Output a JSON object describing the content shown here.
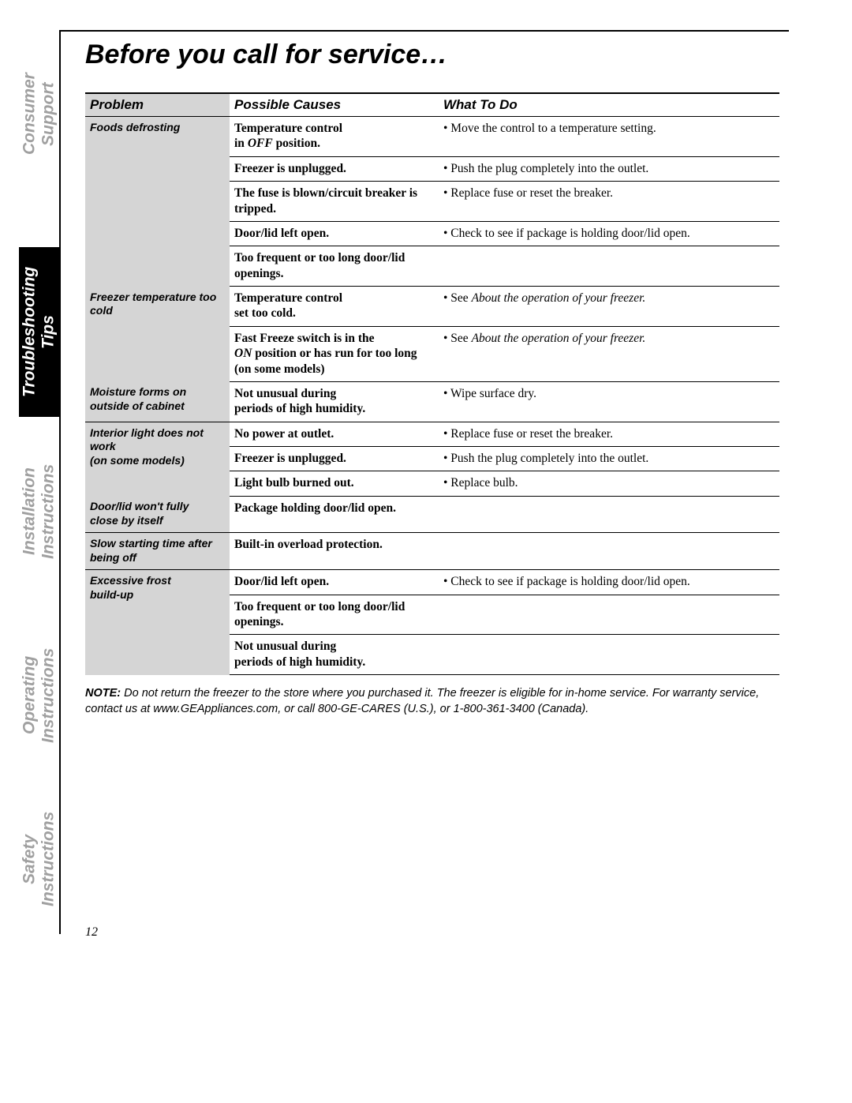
{
  "title": "Before you call for service…",
  "tabs": {
    "safety": "Safety Instructions",
    "operating": "Operating Instructions",
    "install": "Installation Instructions",
    "trouble": "Troubleshooting Tips",
    "consumer": "Consumer Support"
  },
  "headers": {
    "problem": "Problem",
    "cause": "Possible Causes",
    "do": "What To Do"
  },
  "rows": [
    {
      "problem": "Foods defrosting",
      "cause": "Temperature control<br>in <i>OFF</i> position.",
      "do": "• Move the control to a temperature setting."
    },
    {
      "cause": "Freezer is unplugged.",
      "do": "• Push the plug completely into the outlet."
    },
    {
      "cause": "The fuse is blown/circuit breaker is tripped.",
      "do": "• Replace fuse or reset the breaker."
    },
    {
      "cause": "Door/lid left open.",
      "do": "• Check to see if package is holding door/lid open."
    },
    {
      "cause": "Too frequent or too long door/lid openings.",
      "do": "",
      "last": true
    },
    {
      "problem": "Freezer temperature too cold",
      "cause": "Temperature control<br>set too cold.",
      "do": "• See <i>About the operation of your freezer.</i>"
    },
    {
      "cause": "Fast Freeze switch is in the<br><i>ON</i> position or has run for too long (on some models)",
      "do": "• See <i>About the operation of your freezer.</i>",
      "last": true
    },
    {
      "problem": "Moisture forms on outside of cabinet",
      "cause": "Not unusual during<br>periods of high humidity.",
      "do": "• Wipe surface dry.",
      "last": true
    },
    {
      "problem": "Interior light does not work<br>(on some models)",
      "cause": "No power at outlet.",
      "do": "• Replace fuse or reset the breaker."
    },
    {
      "cause": "Freezer is unplugged.",
      "do": "• Push the plug completely into the outlet."
    },
    {
      "cause": "Light bulb burned out.",
      "do": "• Replace bulb.",
      "last": true
    },
    {
      "problem": "Door/lid won't fully close by itself",
      "cause": "Package holding door/lid open.",
      "do": "",
      "last": true
    },
    {
      "problem": "Slow starting time after being off",
      "cause": "Built-in overload protection.",
      "do": "",
      "last": true
    },
    {
      "problem": "Excessive frost<br>build-up",
      "cause": "Door/lid left open.",
      "do": "• Check to see if package is holding door/lid open."
    },
    {
      "cause": "Too frequent or too long door/lid openings.",
      "do": ""
    },
    {
      "cause": "Not unusual during<br>periods of high humidity.",
      "do": "",
      "last": true
    }
  ],
  "note_label": "NOTE:",
  "note_text": "Do not return the freezer to the store where you purchased it. The freezer is eligible for in-home service. For warranty service, contact us at www.GEAppliances.com, or call 800-GE-CARES (U.S.), or 1-800-361-3400 (Canada).",
  "page_number": "12"
}
